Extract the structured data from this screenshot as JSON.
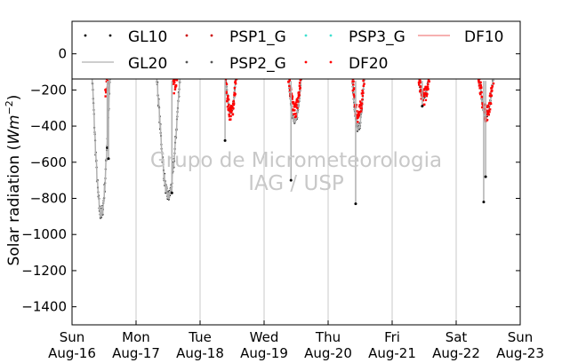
{
  "chart_data": {
    "type": "line",
    "ylabel_text": "Solar radiation (",
    "ylabel_math": "Wm",
    "ylabel_exp": "−2",
    "ylabel_close": ")",
    "ylim": [
      -1500,
      180
    ],
    "yticks": [
      0,
      -200,
      -400,
      -600,
      -800,
      -1000,
      -1200,
      -1400
    ],
    "ytick_labels": [
      "0",
      "−200",
      "−400",
      "−600",
      "−800",
      "−1000",
      "−1200",
      "−1400"
    ],
    "xlim": [
      0,
      7
    ],
    "xticks": [
      {
        "day": "Sun",
        "date": "Aug-16"
      },
      {
        "day": "Mon",
        "date": "Aug-17"
      },
      {
        "day": "Tue",
        "date": "Aug-18"
      },
      {
        "day": "Wed",
        "date": "Aug-19"
      },
      {
        "day": "Thu",
        "date": "Aug-20"
      },
      {
        "day": "Fri",
        "date": "Aug-21"
      },
      {
        "day": "Sat",
        "date": "Aug-22"
      },
      {
        "day": "Sun",
        "date": "Aug-23"
      }
    ],
    "grid": "x",
    "legend": {
      "placement": "top",
      "entries": [
        {
          "name": "GL10",
          "style": "dots",
          "color": "#000000"
        },
        {
          "name": "PSP1_G",
          "style": "dots",
          "color": "#cc0000"
        },
        {
          "name": "PSP3_G",
          "style": "dots",
          "color": "#40e0d0"
        },
        {
          "name": "DF10",
          "style": "line",
          "color": "#f08080"
        },
        {
          "name": "GL20",
          "style": "line",
          "color": "#b0b0b0"
        },
        {
          "name": "PSP2_G",
          "style": "dots",
          "color": "#555555"
        },
        {
          "name": "DF20",
          "style": "dots",
          "color": "#ff0000"
        }
      ]
    },
    "watermark": [
      "Grupo de Micrometeorologia",
      "IAG / USP"
    ],
    "days": [
      {
        "start": 0.29,
        "end": 0.62,
        "min": -890,
        "red_from": 0.52,
        "red_min": -280
      },
      {
        "start": 1.29,
        "end": 1.72,
        "min": -790,
        "red_from": 1.58,
        "red_min": -230
      },
      {
        "start": 2.36,
        "end": 2.6,
        "min": -330,
        "red_from": 2.36,
        "red_min": -330
      },
      {
        "start": 3.34,
        "end": 3.62,
        "min": -380,
        "red_from": 3.36,
        "red_min": -310
      },
      {
        "start": 4.34,
        "end": 4.6,
        "min": -420,
        "red_from": 4.36,
        "red_min": -340
      },
      {
        "start": 5.35,
        "end": 5.63,
        "min": -240,
        "red_from": 5.35,
        "red_min": -240
      },
      {
        "start": 6.31,
        "end": 6.63,
        "min": -340,
        "red_from": 6.31,
        "red_min": -330
      }
    ],
    "spikes": [
      {
        "x": 0.55,
        "y": -520
      },
      {
        "x": 0.57,
        "y": -580
      },
      {
        "x": 1.56,
        "y": -770
      },
      {
        "x": 2.39,
        "y": -480
      },
      {
        "x": 3.42,
        "y": -700
      },
      {
        "x": 4.43,
        "y": -830
      },
      {
        "x": 5.47,
        "y": -290
      },
      {
        "x": 6.43,
        "y": -820
      },
      {
        "x": 6.46,
        "y": -680
      }
    ]
  }
}
